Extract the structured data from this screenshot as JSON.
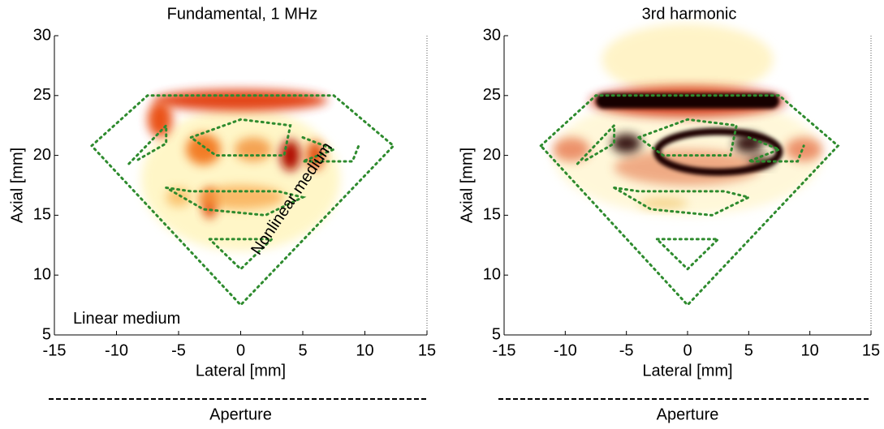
{
  "chart_data": [
    {
      "type": "heatmap",
      "title": "Fundamental, 1 MHz",
      "xlabel": "Lateral [mm]",
      "ylabel": "Axial [mm]",
      "xlim": [
        -15,
        15
      ],
      "ylim": [
        5,
        30
      ],
      "xticks": [
        -15,
        -10,
        -5,
        0,
        5,
        10,
        15
      ],
      "yticks": [
        5,
        10,
        15,
        20,
        25,
        30
      ],
      "annotations": [
        "Linear medium",
        "Nonlinear medium"
      ],
      "footer": "Aperture"
    },
    {
      "type": "heatmap",
      "title": "3rd harmonic",
      "xlabel": "Lateral [mm]",
      "ylabel": "Axial [mm]",
      "xlim": [
        -15,
        15
      ],
      "ylim": [
        5,
        30
      ],
      "xticks": [
        -15,
        -10,
        -5,
        0,
        5,
        10,
        15
      ],
      "yticks": [
        5,
        10,
        15,
        20,
        25,
        30
      ],
      "footer": "Aperture"
    }
  ]
}
